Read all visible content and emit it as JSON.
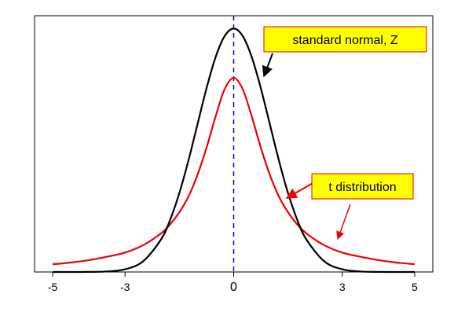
{
  "chart_data": {
    "type": "line",
    "title": "",
    "xlabel": "",
    "ylabel": "",
    "xlim": [
      -5.5,
      5.5
    ],
    "ylim": [
      0,
      0.42
    ],
    "grid": false,
    "x_ticks": [
      {
        "value": -5,
        "label": "-5"
      },
      {
        "value": -3,
        "label": "-3"
      },
      {
        "value": 0,
        "label": "0"
      },
      {
        "value": 3,
        "label": "3"
      },
      {
        "value": 5,
        "label": "5"
      }
    ],
    "center_line": {
      "x": 0,
      "style": "dashed",
      "color": "#0000cc"
    },
    "series": [
      {
        "name": "standard normal, Z",
        "color": "#000000",
        "x": [
          -5,
          -4.5,
          -4,
          -3.5,
          -3,
          -2.5,
          -2,
          -1.75,
          -1.5,
          -1.25,
          -1,
          -0.75,
          -0.5,
          -0.25,
          0,
          0.25,
          0.5,
          0.75,
          1,
          1.25,
          1.5,
          1.75,
          2,
          2.5,
          3,
          3.5,
          4,
          4.5,
          5
        ],
        "y": [
          1.5e-06,
          1.6e-05,
          0.000134,
          0.000873,
          0.00443,
          0.01753,
          0.05399,
          0.08628,
          0.12952,
          0.18265,
          0.24197,
          0.30114,
          0.35207,
          0.38667,
          0.39894,
          0.38667,
          0.35207,
          0.30114,
          0.24197,
          0.18265,
          0.12952,
          0.08628,
          0.05399,
          0.01753,
          0.00443,
          0.000873,
          0.000134,
          1.6e-05,
          1.5e-06
        ]
      },
      {
        "name": "t distribution",
        "color": "#ee0000",
        "x": [
          -5,
          -4.5,
          -4,
          -3.5,
          -3,
          -2.5,
          -2,
          -1.75,
          -1.5,
          -1.25,
          -1,
          -0.75,
          -0.5,
          -0.25,
          0,
          0.25,
          0.5,
          0.75,
          1,
          1.25,
          1.5,
          1.75,
          2,
          2.5,
          3,
          3.5,
          4,
          4.5,
          5
        ],
        "y": [
          0.01273,
          0.0155,
          0.01941,
          0.02499,
          0.03183,
          0.0439,
          0.06366,
          0.07846,
          0.09794,
          0.1236,
          0.15915,
          0.20372,
          0.25465,
          0.29958,
          0.31831,
          0.29958,
          0.25465,
          0.20372,
          0.15915,
          0.1236,
          0.09794,
          0.07846,
          0.06366,
          0.0439,
          0.03183,
          0.02499,
          0.01941,
          0.0155,
          0.01273
        ]
      }
    ],
    "annotations": [
      {
        "text": "standard normal, Z",
        "series": "standard normal, Z",
        "box_color": "#ffff00",
        "border_color": "#ee0000",
        "arrow_color": "#000000",
        "points_to_x": 0.75
      },
      {
        "text": "t distribution",
        "series": "t distribution",
        "box_color": "#ffff00",
        "border_color": "#ee0000",
        "arrow_color": "#ee0000",
        "points_to_x": [
          1.45,
          2.9
        ]
      }
    ]
  }
}
